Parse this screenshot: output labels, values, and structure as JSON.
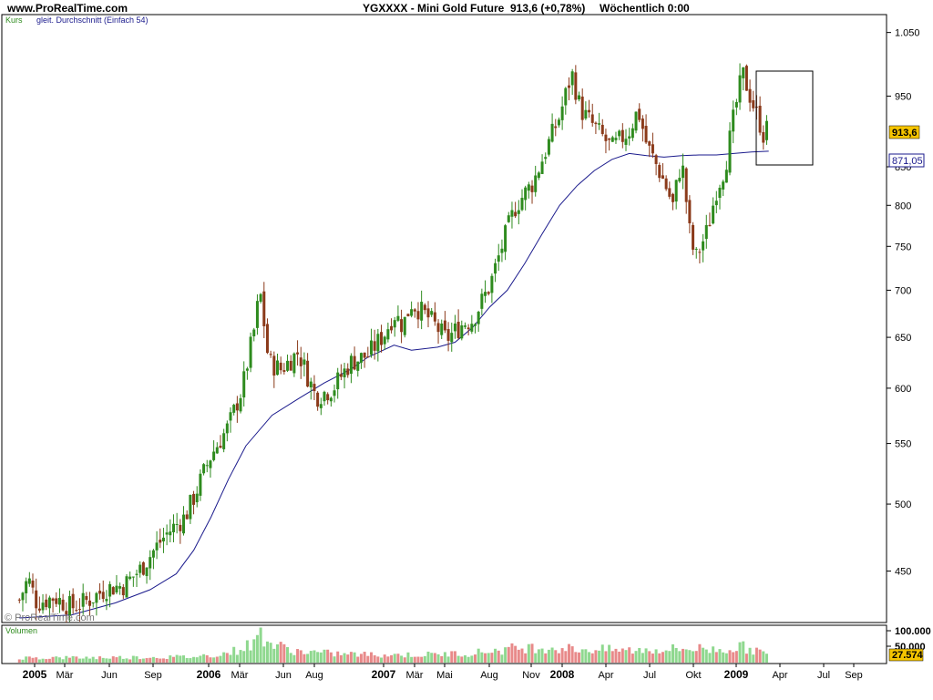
{
  "header": {
    "site": "www.ProRealTime.com",
    "instrument": "YGXXXX - Mini Gold Future",
    "quote": "913,6 (+0,78%)",
    "period": "Wöchentlich 0:00"
  },
  "watermark": "© ProRealTime.com",
  "colors": {
    "up": "#2e8b1e",
    "down": "#8b3a1a",
    "ma": "#1a1a8c",
    "vol_up": "#8fd88f",
    "vol_down": "#e88a8a",
    "price_tag": "#f5c400",
    "ma_tag_border": "#1a1a8c"
  },
  "chart_data": [
    {
      "type": "candlestick",
      "legend": [
        "Kurs",
        "gleit. Durchschnitt (Einfach 54)"
      ],
      "y_ticks": [
        450,
        500,
        550,
        600,
        650,
        700,
        750,
        800,
        850,
        950,
        1050
      ],
      "y_tick_labels": [
        "450",
        "500",
        "550",
        "600",
        "650",
        "700",
        "750",
        "800",
        "850",
        "950",
        "1.050"
      ],
      "ylim": [
        415,
        1080
      ],
      "y_scale": "log",
      "x_labels": [
        {
          "text": "2005",
          "bold": true
        },
        {
          "text": "Mär",
          "bold": false
        },
        {
          "text": "Jun",
          "bold": false
        },
        {
          "text": "Sep",
          "bold": false
        },
        {
          "text": "2006",
          "bold": true
        },
        {
          "text": "Mär",
          "bold": false
        },
        {
          "text": "Jun",
          "bold": false
        },
        {
          "text": "Aug",
          "bold": false
        },
        {
          "text": "2007",
          "bold": true
        },
        {
          "text": "Mär",
          "bold": false
        },
        {
          "text": "Mai",
          "bold": false
        },
        {
          "text": "Aug",
          "bold": false
        },
        {
          "text": "Nov",
          "bold": false
        },
        {
          "text": "2008",
          "bold": true
        },
        {
          "text": "Apr",
          "bold": false
        },
        {
          "text": "Jul",
          "bold": false
        },
        {
          "text": "Okt",
          "bold": false
        },
        {
          "text": "2009",
          "bold": true
        },
        {
          "text": "Apr",
          "bold": false
        },
        {
          "text": "Jul",
          "bold": false
        },
        {
          "text": "Sep",
          "bold": false
        }
      ],
      "last_price_label": "913,6",
      "last_price": 913.6,
      "ma_value_label": "871,05",
      "ma_value": 871.05,
      "close_series": [
        [
          2005.0,
          430
        ],
        [
          2005.05,
          445
        ],
        [
          2005.1,
          428
        ],
        [
          2005.2,
          432
        ],
        [
          2005.3,
          425
        ],
        [
          2005.4,
          430
        ],
        [
          2005.5,
          438
        ],
        [
          2005.6,
          440
        ],
        [
          2005.7,
          452
        ],
        [
          2005.8,
          470
        ],
        [
          2005.85,
          478
        ],
        [
          2005.95,
          490
        ],
        [
          2006.0,
          505
        ],
        [
          2006.1,
          540
        ],
        [
          2006.2,
          565
        ],
        [
          2006.28,
          600
        ],
        [
          2006.35,
          660
        ],
        [
          2006.38,
          700
        ],
        [
          2006.43,
          625
        ],
        [
          2006.5,
          618
        ],
        [
          2006.6,
          635
        ],
        [
          2006.7,
          592
        ],
        [
          2006.8,
          600
        ],
        [
          2006.9,
          625
        ],
        [
          2007.0,
          632
        ],
        [
          2007.1,
          655
        ],
        [
          2007.15,
          675
        ],
        [
          2007.2,
          662
        ],
        [
          2007.25,
          686
        ],
        [
          2007.35,
          670
        ],
        [
          2007.45,
          648
        ],
        [
          2007.55,
          665
        ],
        [
          2007.6,
          668
        ],
        [
          2007.7,
          705
        ],
        [
          2007.8,
          770
        ],
        [
          2007.85,
          800
        ],
        [
          2007.95,
          830
        ],
        [
          2008.0,
          860
        ],
        [
          2008.1,
          920
        ],
        [
          2008.17,
          985
        ],
        [
          2008.22,
          930
        ],
        [
          2008.3,
          905
        ],
        [
          2008.4,
          875
        ],
        [
          2008.5,
          900
        ],
        [
          2008.55,
          930
        ],
        [
          2008.6,
          880
        ],
        [
          2008.7,
          830
        ],
        [
          2008.75,
          800
        ],
        [
          2008.8,
          860
        ],
        [
          2008.85,
          760
        ],
        [
          2008.88,
          735
        ],
        [
          2008.95,
          770
        ],
        [
          2009.0,
          820
        ],
        [
          2009.05,
          850
        ],
        [
          2009.1,
          920
        ],
        [
          2009.15,
          985
        ],
        [
          2009.2,
          945
        ],
        [
          2009.25,
          910
        ],
        [
          2009.28,
          885
        ],
        [
          2009.3,
          913.6
        ]
      ],
      "ma_series": [
        [
          2005.0,
          418
        ],
        [
          2005.3,
          420
        ],
        [
          2005.55,
          428
        ],
        [
          2005.75,
          437
        ],
        [
          2005.9,
          448
        ],
        [
          2006.0,
          465
        ],
        [
          2006.1,
          490
        ],
        [
          2006.2,
          520
        ],
        [
          2006.3,
          548
        ],
        [
          2006.45,
          575
        ],
        [
          2006.6,
          590
        ],
        [
          2006.75,
          605
        ],
        [
          2006.9,
          618
        ],
        [
          2007.0,
          630
        ],
        [
          2007.15,
          642
        ],
        [
          2007.25,
          637
        ],
        [
          2007.4,
          640
        ],
        [
          2007.5,
          645
        ],
        [
          2007.6,
          660
        ],
        [
          2007.7,
          682
        ],
        [
          2007.8,
          700
        ],
        [
          2007.9,
          730
        ],
        [
          2008.0,
          765
        ],
        [
          2008.1,
          800
        ],
        [
          2008.2,
          825
        ],
        [
          2008.3,
          845
        ],
        [
          2008.4,
          860
        ],
        [
          2008.5,
          868
        ],
        [
          2008.6,
          865
        ],
        [
          2008.7,
          863
        ],
        [
          2008.8,
          865
        ],
        [
          2008.9,
          866
        ],
        [
          2009.0,
          866
        ],
        [
          2009.1,
          868
        ],
        [
          2009.2,
          870
        ],
        [
          2009.3,
          871.05
        ]
      ]
    },
    {
      "type": "bar",
      "legend": [
        "Volumen"
      ],
      "y_tick_labels": [
        "100.000",
        "50.000"
      ],
      "y_ticks": [
        100000,
        50000
      ],
      "ylim": [
        0,
        110000
      ],
      "last_value_label": "27.574",
      "last_value": 27574,
      "values_shape": [
        [
          2005.0,
          15000
        ],
        [
          2005.5,
          16000
        ],
        [
          2006.0,
          18000
        ],
        [
          2006.2,
          30000
        ],
        [
          2006.35,
          60000
        ],
        [
          2006.38,
          95000
        ],
        [
          2006.45,
          55000
        ],
        [
          2006.6,
          35000
        ],
        [
          2006.8,
          28000
        ],
        [
          2007.0,
          25000
        ],
        [
          2007.3,
          24000
        ],
        [
          2007.6,
          30000
        ],
        [
          2007.85,
          45000
        ],
        [
          2008.0,
          48000
        ],
        [
          2008.2,
          42000
        ],
        [
          2008.5,
          38000
        ],
        [
          2008.75,
          42000
        ],
        [
          2008.9,
          44000
        ],
        [
          2009.0,
          40000
        ],
        [
          2009.15,
          48000
        ],
        [
          2009.3,
          27574
        ]
      ]
    }
  ]
}
